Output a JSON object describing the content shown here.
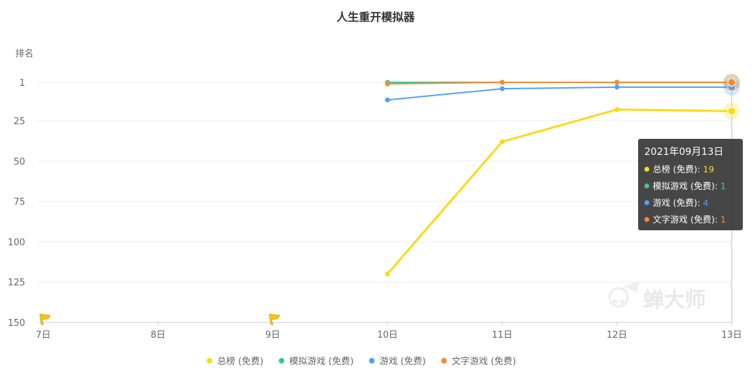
{
  "chart_data": {
    "type": "line",
    "title": "人生重开模拟器",
    "ylabel": "排名",
    "y_inverted": true,
    "ylim": [
      1,
      150
    ],
    "yticks": [
      1,
      25,
      50,
      75,
      100,
      125,
      150
    ],
    "categories": [
      "7日",
      "8日",
      "9日",
      "10日",
      "11日",
      "12日",
      "13日"
    ],
    "series": [
      {
        "name": "总榜 (免费)",
        "color": "#fadb14",
        "values": [
          null,
          null,
          null,
          120,
          38,
          18,
          19
        ]
      },
      {
        "name": "模拟游戏 (免费)",
        "color": "#3fc59b",
        "values": [
          null,
          null,
          null,
          1,
          1,
          1,
          1
        ]
      },
      {
        "name": "游戏 (免费)",
        "color": "#52a0f5",
        "values": [
          null,
          null,
          null,
          12,
          5,
          4,
          4
        ]
      },
      {
        "name": "文字游戏 (免费)",
        "color": "#f48a2f",
        "values": [
          null,
          null,
          null,
          2,
          1,
          1,
          1
        ]
      }
    ],
    "flag_markers": [
      "7日",
      "9日"
    ],
    "legend_position": "bottom",
    "grid": true
  },
  "tooltip": {
    "date": "2021年09月13日",
    "rows": [
      {
        "label": "总榜 (免费): ",
        "value": "19",
        "color": "#fadb14"
      },
      {
        "label": "模拟游戏 (免费): ",
        "value": "1",
        "color": "#3fc59b"
      },
      {
        "label": "游戏 (免费): ",
        "value": "4",
        "color": "#52a0f5"
      },
      {
        "label": "文字游戏 (免费): ",
        "value": "1",
        "color": "#f48a2f"
      }
    ]
  },
  "watermark": "蝉大师"
}
